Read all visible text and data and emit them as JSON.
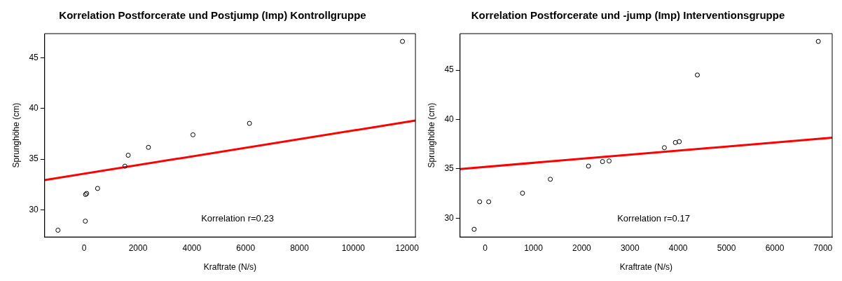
{
  "chart_data": [
    {
      "type": "scatter",
      "title": "Korrelation Postforcerate und Postjump (Imp) Kontrollgruppe",
      "xlabel": "Kraftrate (N/s)",
      "ylabel": "Sprunghöhe (cm)",
      "annotations": [
        "Korrelation r=0.23"
      ],
      "marker": "circle",
      "grid": false,
      "legend": false,
      "xlim": [
        -1470,
        12310
      ],
      "ylim": [
        27.3,
        47.4
      ],
      "xticks": [
        0,
        2000,
        4000,
        6000,
        8000,
        10000,
        12000
      ],
      "yticks": [
        30,
        35,
        40,
        45
      ],
      "series": [
        {
          "color": "#000000",
          "x": [
            -975,
            41,
            50,
            90,
            497,
            1513,
            1635,
            2386,
            4041,
            6142,
            11827
          ],
          "values": [
            27.97,
            28.87,
            31.5,
            31.6,
            32.1,
            34.3,
            35.38,
            36.16,
            37.4,
            38.53,
            46.63
          ]
        },
        {
          "type": "line",
          "color": "#ff0000",
          "marker": "none",
          "x": [
            -1470,
            12310
          ],
          "values": [
            32.93,
            38.81
          ]
        }
      ]
    },
    {
      "type": "scatter",
      "title": "Korrelation Postforcerate und -jump (Imp) Interventionsgruppe",
      "xlabel": "Kraftrate (N/s)",
      "ylabel": "Sprunghöhe (cm)",
      "annotations": [
        "Korrelation r=0.17"
      ],
      "marker": "circle",
      "grid": false,
      "legend": false,
      "xlim": [
        -520,
        7190
      ],
      "ylim": [
        28.1,
        48.7
      ],
      "xticks": [
        0,
        1000,
        2000,
        3000,
        4000,
        5000,
        6000,
        7000
      ],
      "yticks": [
        30,
        35,
        40,
        45
      ],
      "series": [
        {
          "color": "#000000",
          "x": [
            -228,
            -114,
            74,
            774,
            1350,
            2141,
            2432,
            2568,
            3713,
            3941,
            4021,
            4396,
            6902
          ],
          "values": [
            28.88,
            31.67,
            31.67,
            32.54,
            33.95,
            35.28,
            35.74,
            35.8,
            37.15,
            37.67,
            37.76,
            44.51,
            47.91
          ]
        },
        {
          "type": "line",
          "color": "#ff0000",
          "marker": "none",
          "x": [
            -520,
            7190
          ],
          "values": [
            34.99,
            38.16
          ]
        }
      ]
    }
  ]
}
